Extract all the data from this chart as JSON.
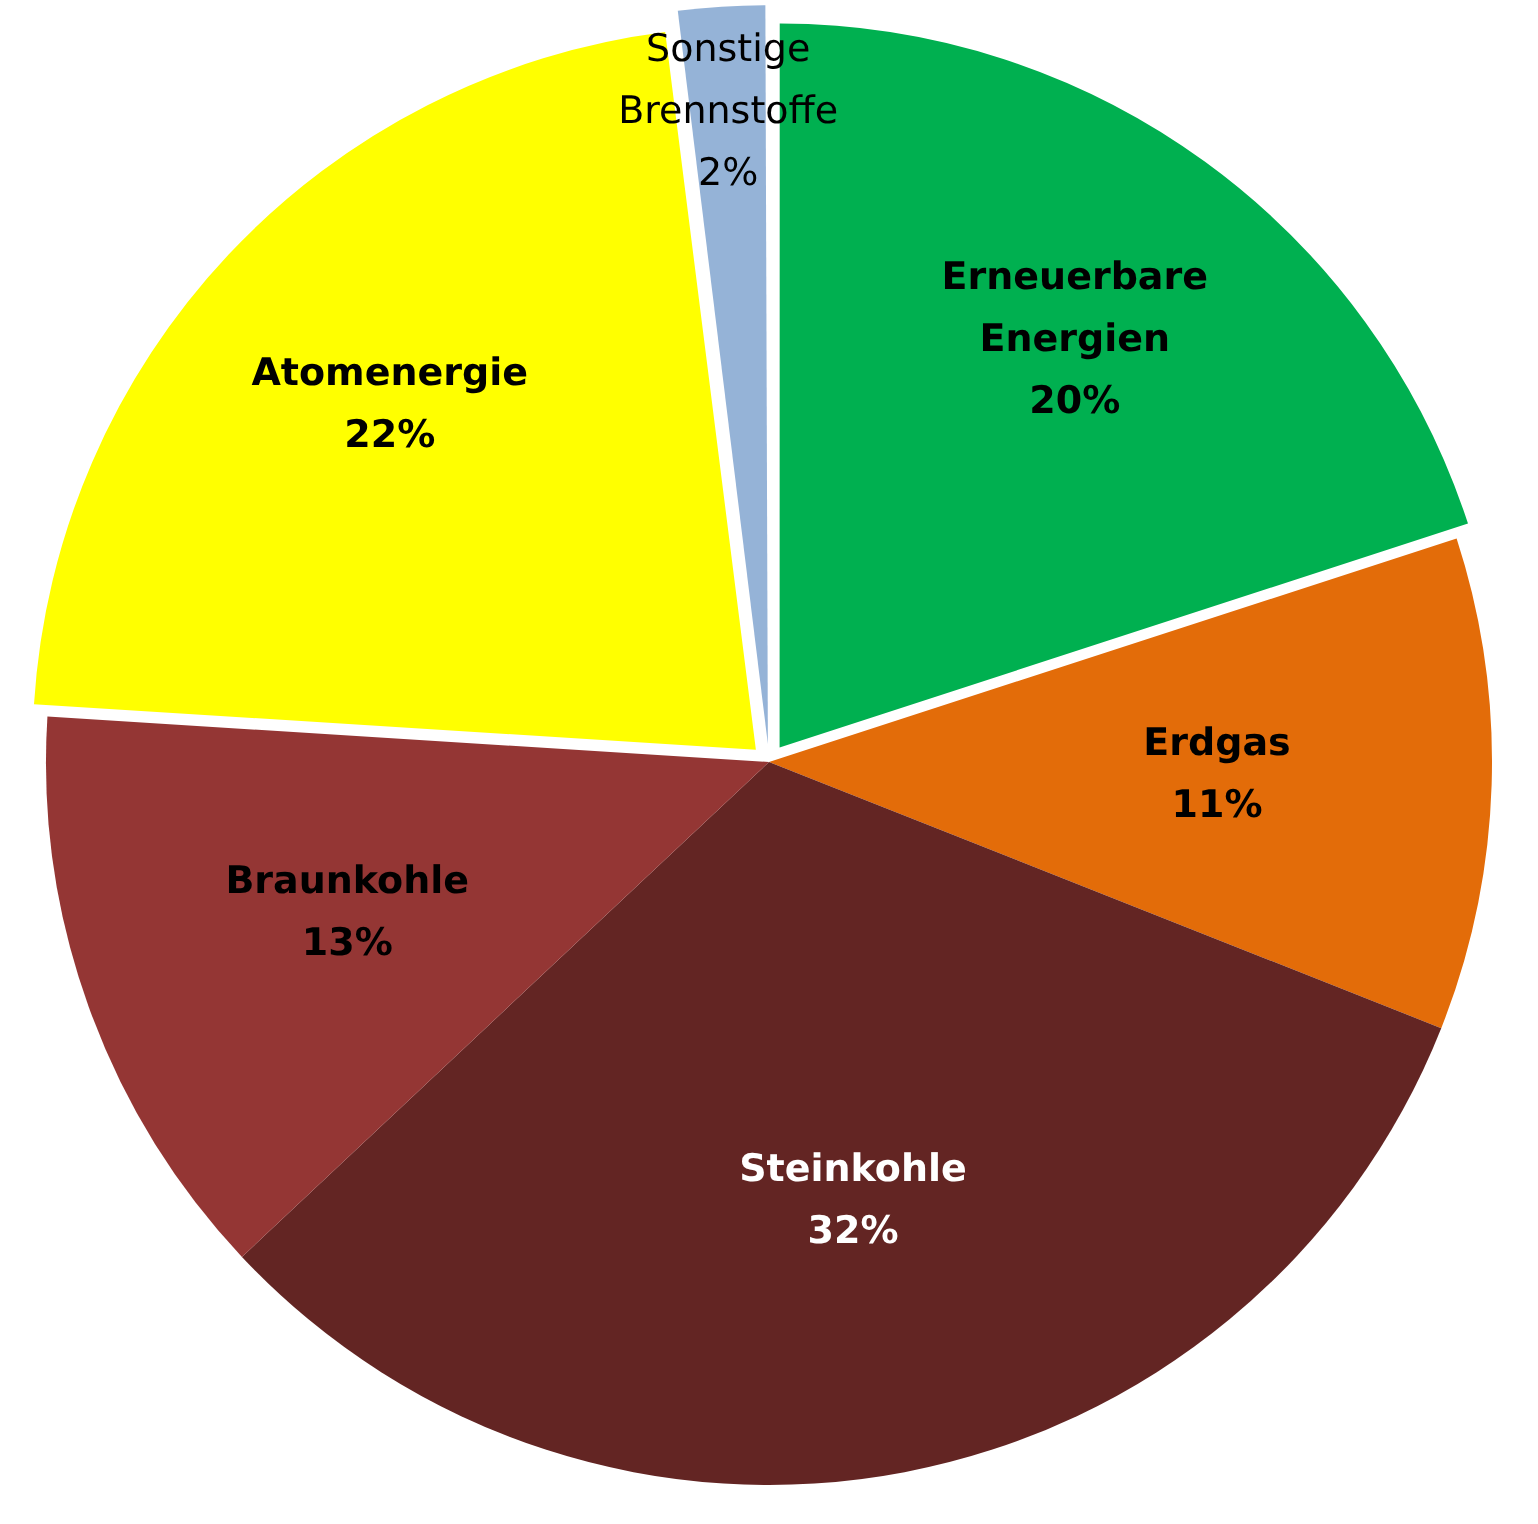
{
  "chart_data": {
    "type": "pie",
    "categories": [
      "Erneuerbare Energien",
      "Erdgas",
      "Steinkohle",
      "Braunkohle",
      "Atomenergie",
      "Sonstige Brennstoffe"
    ],
    "values": [
      20,
      11,
      32,
      13,
      22,
      2
    ],
    "colors": [
      "#00b050",
      "#e36c09",
      "#632523",
      "#943634",
      "#ffff00",
      "#95b3d7"
    ],
    "value_labels": [
      "20%",
      "11%",
      "32%",
      "13%",
      "22%",
      "2%"
    ],
    "legend": false
  }
}
